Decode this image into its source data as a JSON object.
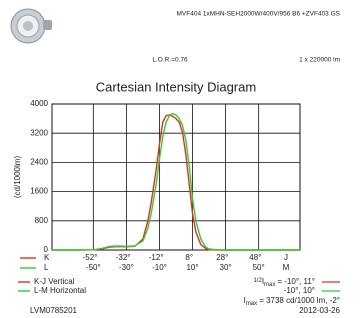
{
  "header": {
    "product": "MVF404 1xMHN-SEH2000W/400V/956 B6 +ZVF403 GS",
    "lor": "L.O.R.=0.76",
    "lumens": "1 x 220000 lm"
  },
  "chart_data": {
    "type": "line",
    "title": "Cartesian Intensity Diagram",
    "y_label": "(cd/1000lm)",
    "x": [
      -75,
      -60,
      -50,
      -45,
      -40,
      -35,
      -30,
      -25,
      -20,
      -17,
      -15,
      -12,
      -10,
      -8,
      -6,
      -4,
      -2,
      0,
      2,
      4,
      6,
      8,
      10,
      12,
      15,
      18,
      20,
      25,
      30,
      40,
      50,
      60,
      75
    ],
    "xlim": [
      -75,
      75
    ],
    "series": [
      {
        "name": "K-J Vertical",
        "color": "#e0301e",
        "values": [
          0,
          0,
          5,
          30,
          80,
          95,
          90,
          100,
          300,
          800,
          1300,
          2200,
          2900,
          3500,
          3680,
          3700,
          3660,
          3600,
          3500,
          3200,
          2600,
          1800,
          1000,
          500,
          150,
          40,
          10,
          0,
          0,
          0,
          0,
          0,
          0
        ]
      },
      {
        "name": "L-M Horizontal",
        "color": "#33cc33",
        "values": [
          0,
          0,
          5,
          40,
          100,
          110,
          100,
          110,
          250,
          600,
          1000,
          1800,
          2500,
          3100,
          3500,
          3680,
          3738,
          3700,
          3600,
          3400,
          3000,
          2300,
          1400,
          800,
          300,
          80,
          30,
          5,
          0,
          0,
          0,
          0,
          0
        ]
      }
    ],
    "x_rows": [
      {
        "start": "K",
        "end": "J",
        "ticks": [
          {
            "value": -52,
            "label": "-52°"
          },
          {
            "value": -32,
            "label": "-32°"
          },
          {
            "value": -12,
            "label": "-12°"
          },
          {
            "value": 8,
            "label": "8°"
          },
          {
            "value": 28,
            "label": "28°"
          },
          {
            "value": 48,
            "label": "48°"
          }
        ]
      },
      {
        "start": "L",
        "end": "M",
        "ticks": [
          {
            "value": -50,
            "label": "-50°"
          },
          {
            "value": -30,
            "label": "-30°"
          },
          {
            "value": -10,
            "label": "-10°"
          },
          {
            "value": 10,
            "label": "10°"
          },
          {
            "value": 30,
            "label": "30°"
          },
          {
            "value": 50,
            "label": "50°"
          }
        ]
      }
    ],
    "ylim": [
      0,
      4000
    ],
    "yticks": [
      0,
      800,
      1600,
      2400,
      3200,
      4000
    ],
    "grid": true,
    "annotations": {
      "half": "1/2",
      "i": "I",
      "max": "max",
      "vertical": "= -10°,  11°",
      "horizontal": "-10°,  10°",
      "imax": "= 3738 cd/1000 lm, -2°"
    }
  },
  "footer": {
    "code": "LVM0785201",
    "date": "2012-03-26"
  }
}
